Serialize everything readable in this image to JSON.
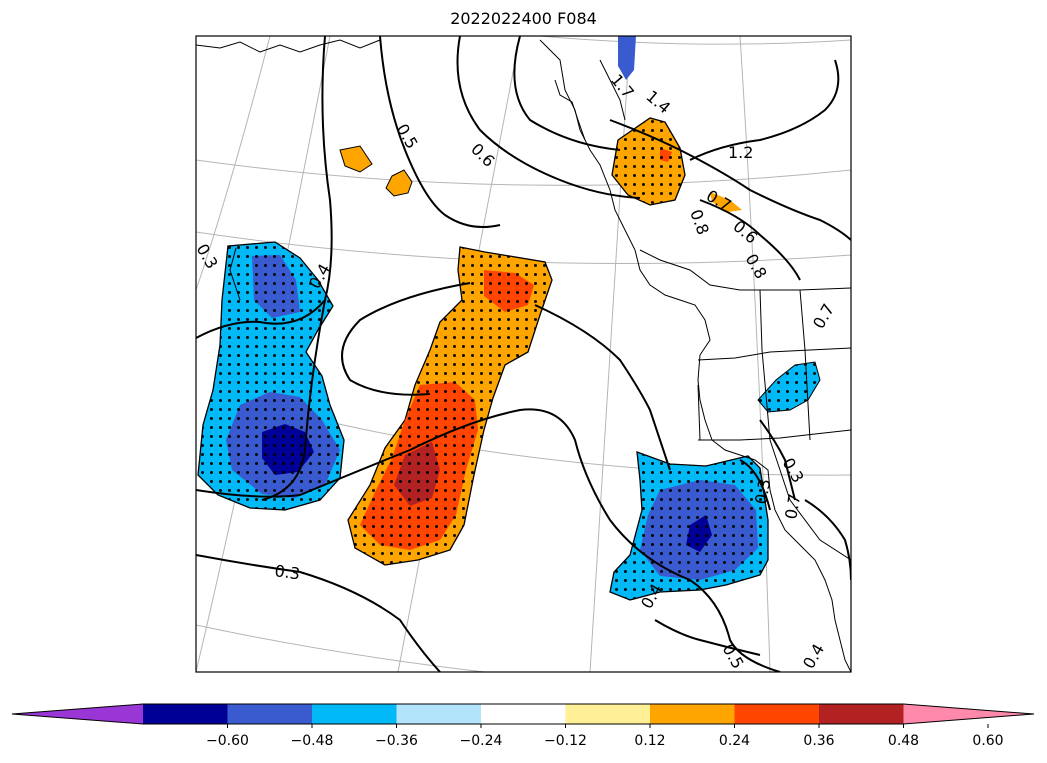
{
  "title": "2022022400 F084",
  "contour_labels": [
    {
      "text": "0.5"
    },
    {
      "text": "0.6"
    },
    {
      "text": "0.4"
    },
    {
      "text": "0.3"
    },
    {
      "text": "0.3"
    },
    {
      "text": "1.4"
    },
    {
      "text": "1.2"
    },
    {
      "text": "0.7"
    },
    {
      "text": "0.8"
    },
    {
      "text": "0.6"
    },
    {
      "text": "0.8"
    },
    {
      "text": "0.7"
    },
    {
      "text": "0.3"
    },
    {
      "text": "0.3"
    },
    {
      "text": "0.7"
    },
    {
      "text": "0.5"
    },
    {
      "text": "0.4"
    },
    {
      "text": "0.4"
    },
    {
      "text": "1.7"
    }
  ],
  "colorbar": {
    "colors": [
      "#9a35d6",
      "#000096",
      "#3a5bd0",
      "#00b9f6",
      "#b2e5fb",
      "#ffffff",
      "#ffef96",
      "#ffa500",
      "#ff4500",
      "#b22222",
      "#ff89ab"
    ],
    "ticks": [
      "−0.60",
      "−0.48",
      "−0.36",
      "−0.24",
      "−0.12",
      "0.12",
      "0.24",
      "0.36",
      "0.48",
      "0.60"
    ]
  }
}
